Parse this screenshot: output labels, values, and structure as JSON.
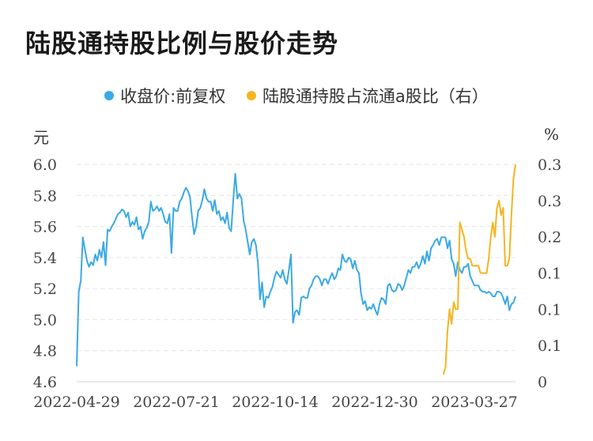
{
  "title": "陆股通持股比例与股价走势",
  "colors": {
    "price": "#3aa9e6",
    "ratio": "#f5b521",
    "grid": "#e6e6e6",
    "text": "#444444"
  },
  "chart_data": {
    "type": "line",
    "title": "陆股通持股比例与股价走势",
    "left_unit": "元",
    "right_unit": "%",
    "x_tick_labels": [
      "2022-04-29",
      "2022-07-21",
      "2022-10-14",
      "2022-12-30",
      "2023-03-27"
    ],
    "y_left": {
      "ylim": [
        4.6,
        6.0
      ],
      "ticks": [
        4.6,
        4.8,
        5.0,
        5.2,
        5.4,
        5.6,
        5.8,
        6.0
      ],
      "tick_labels": [
        "4.6",
        "4.8",
        "5.0",
        "5.2",
        "5.4",
        "5.6",
        "5.8",
        "6.0"
      ]
    },
    "y_right": {
      "ylim": [
        0,
        0.3
      ],
      "tick_labels": [
        "0",
        "0.1",
        "0.1",
        "0.1",
        "0.2",
        "0.3",
        "0.3"
      ]
    },
    "grid": true,
    "legend_position": "top-center",
    "series": [
      {
        "name": "收盘价:前复权",
        "axis": "left",
        "color": "#3aa9e6",
        "values": [
          4.7,
          5.18,
          5.25,
          5.53,
          5.45,
          5.38,
          5.34,
          5.37,
          5.35,
          5.42,
          5.38,
          5.45,
          5.4,
          5.5,
          5.35,
          5.58,
          5.57,
          5.6,
          5.62,
          5.65,
          5.68,
          5.69,
          5.71,
          5.7,
          5.66,
          5.69,
          5.6,
          5.63,
          5.61,
          5.66,
          5.58,
          5.6,
          5.52,
          5.57,
          5.59,
          5.63,
          5.76,
          5.7,
          5.71,
          5.73,
          5.7,
          5.72,
          5.68,
          5.63,
          5.62,
          5.68,
          5.43,
          5.72,
          5.7,
          5.7,
          5.76,
          5.78,
          5.82,
          5.85,
          5.83,
          5.79,
          5.66,
          5.55,
          5.6,
          5.7,
          5.72,
          5.77,
          5.84,
          5.78,
          5.76,
          5.76,
          5.7,
          5.77,
          5.68,
          5.7,
          5.64,
          5.66,
          5.62,
          5.69,
          5.59,
          5.57,
          5.77,
          5.94,
          5.78,
          5.81,
          5.78,
          5.64,
          5.58,
          5.5,
          5.42,
          5.5,
          5.52,
          5.48,
          5.36,
          5.13,
          5.24,
          5.08,
          5.15,
          5.14,
          5.18,
          5.21,
          5.27,
          5.31,
          5.29,
          5.27,
          5.32,
          5.26,
          5.23,
          5.32,
          5.42,
          4.98,
          5.05,
          5.06,
          5.03,
          5.14,
          5.15,
          5.14,
          5.14,
          5.2,
          5.22,
          5.26,
          5.28,
          5.28,
          5.26,
          5.22,
          5.26,
          5.26,
          5.23,
          5.27,
          5.3,
          5.26,
          5.28,
          5.33,
          5.32,
          5.42,
          5.38,
          5.37,
          5.4,
          5.39,
          5.33,
          5.38,
          5.32,
          5.3,
          5.17,
          5.1,
          5.12,
          5.06,
          5.08,
          5.07,
          5.1,
          5.06,
          5.03,
          5.1,
          5.14,
          5.13,
          5.1,
          5.22,
          5.23,
          5.19,
          5.18,
          5.19,
          5.23,
          5.22,
          5.19,
          5.22,
          5.27,
          5.32,
          5.3,
          5.34,
          5.34,
          5.37,
          5.33,
          5.36,
          5.41,
          5.36,
          5.44,
          5.38,
          5.46,
          5.48,
          5.51,
          5.52,
          5.48,
          5.53,
          5.53,
          5.53,
          5.46,
          5.51,
          5.39,
          5.36,
          5.28,
          5.37,
          5.32,
          5.3,
          5.34,
          5.34,
          5.36,
          5.28,
          5.25,
          5.22,
          5.22,
          5.22,
          5.19,
          5.18,
          5.18,
          5.17,
          5.18,
          5.17,
          5.15,
          5.15,
          5.18,
          5.18,
          5.17,
          5.14,
          5.1,
          5.15,
          5.06,
          5.1,
          5.11,
          5.15
        ]
      },
      {
        "name": "陆股通持股占流通a股比（右）",
        "axis": "right",
        "color": "#f5b521",
        "values": [
          0.01,
          0.02,
          0.07,
          0.1,
          0.08,
          0.11,
          0.1,
          0.1,
          0.22,
          0.21,
          0.2,
          0.18,
          0.17,
          0.17,
          0.16,
          0.16,
          0.16,
          0.16,
          0.15,
          0.15,
          0.15,
          0.15,
          0.17,
          0.2,
          0.22,
          0.2,
          0.24,
          0.25,
          0.23,
          0.24,
          0.16,
          0.16,
          0.17,
          0.23,
          0.28,
          0.3
        ]
      }
    ]
  }
}
